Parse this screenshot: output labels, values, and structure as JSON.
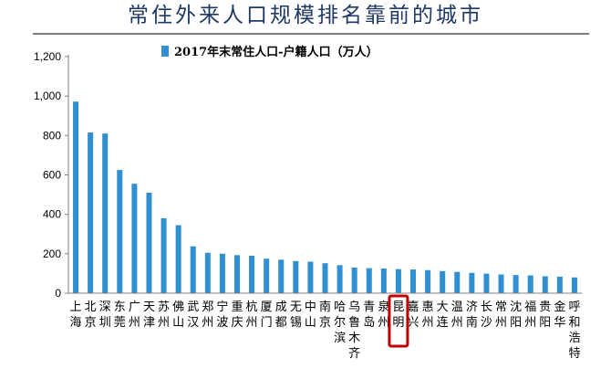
{
  "header": {
    "title": "常住外来人口规模排名靠前的城市"
  },
  "colors": {
    "bar": "#2f8fd0",
    "highlight_box": "#c00000",
    "title": "#1f3864",
    "axis": "#808080"
  },
  "chart_data": {
    "type": "bar",
    "title": "常住外来人口规模排名靠前的城市",
    "legend_position": "top",
    "grid": false,
    "xlabel": "",
    "ylabel": "",
    "ylim": [
      0,
      1200
    ],
    "yticks": [
      "1,200",
      "1,000",
      "800",
      "600",
      "400",
      "200",
      "0"
    ],
    "ytick_values": [
      1200,
      1000,
      800,
      600,
      400,
      200,
      0
    ],
    "categories": [
      "上海",
      "北京",
      "深圳",
      "东莞",
      "广州",
      "天津",
      "苏州",
      "佛山",
      "武汉",
      "郑州",
      "宁波",
      "重庆",
      "杭州",
      "厦门",
      "成都",
      "无锡",
      "中山",
      "南京",
      "哈尔滨",
      "乌鲁木齐",
      "青岛",
      "泉州",
      "昆明",
      "嘉兴",
      "惠州",
      "大连",
      "温州",
      "济南",
      "长沙",
      "常州",
      "沈阳",
      "福州",
      "贵阳",
      "金华",
      "呼和浩特"
    ],
    "series": [
      {
        "name": "2017年末常住人口-户籍人口（万人）",
        "values": [
          972,
          815,
          810,
          625,
          555,
          510,
          380,
          345,
          238,
          205,
          200,
          193,
          190,
          175,
          170,
          163,
          160,
          152,
          142,
          130,
          127,
          125,
          122,
          120,
          117,
          112,
          108,
          103,
          99,
          95,
          92,
          90,
          86,
          84,
          80
        ]
      }
    ],
    "highlighted_category": "昆明"
  }
}
